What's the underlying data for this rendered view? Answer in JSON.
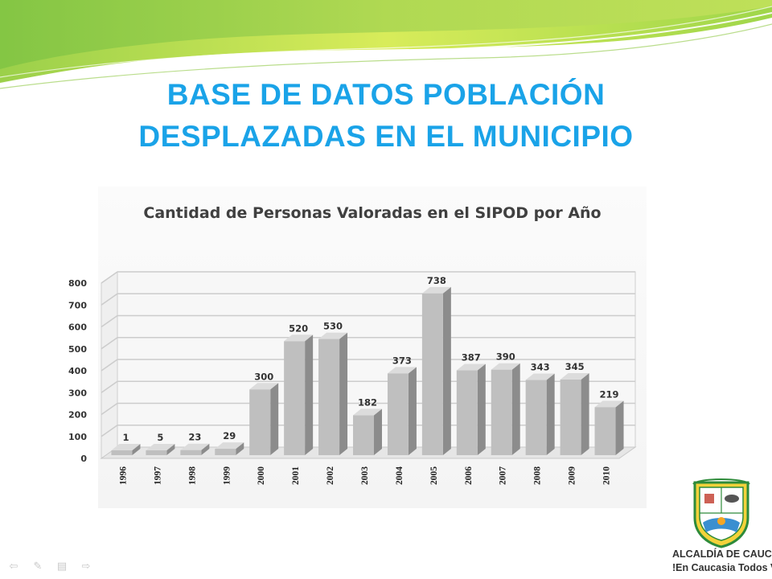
{
  "slide": {
    "title_line1": "BASE DE DATOS POBLACIÓN",
    "title_line2": "DESPLAZADAS EN EL MUNICIPIO",
    "title_color": "#1aa3e8"
  },
  "chart_data": {
    "type": "bar",
    "title": "Cantidad de Personas Valoradas en el SIPOD por Año",
    "xlabel": "",
    "ylabel": "",
    "categories": [
      "1996",
      "1997",
      "1998",
      "1999",
      "2000",
      "2001",
      "2002",
      "2003",
      "2004",
      "2005",
      "2006",
      "2007",
      "2008",
      "2009",
      "2010"
    ],
    "values": [
      1,
      5,
      23,
      29,
      300,
      520,
      530,
      182,
      373,
      738,
      387,
      390,
      343,
      345,
      219
    ],
    "ylim": [
      0,
      800
    ],
    "yticks": [
      0,
      100,
      200,
      300,
      400,
      500,
      600,
      700,
      800
    ],
    "grid": true,
    "legend": "none",
    "bar_color": "#bfbfbf",
    "style": "3d-column"
  },
  "nav": {
    "icons": [
      "back-arrow-icon",
      "pen-icon",
      "slides-menu-icon",
      "forward-arrow-icon"
    ]
  },
  "logo": {
    "line1": "ALCALDÍA DE CAUCASIA",
    "line2": "!En Caucasia Todos Valemos!"
  }
}
